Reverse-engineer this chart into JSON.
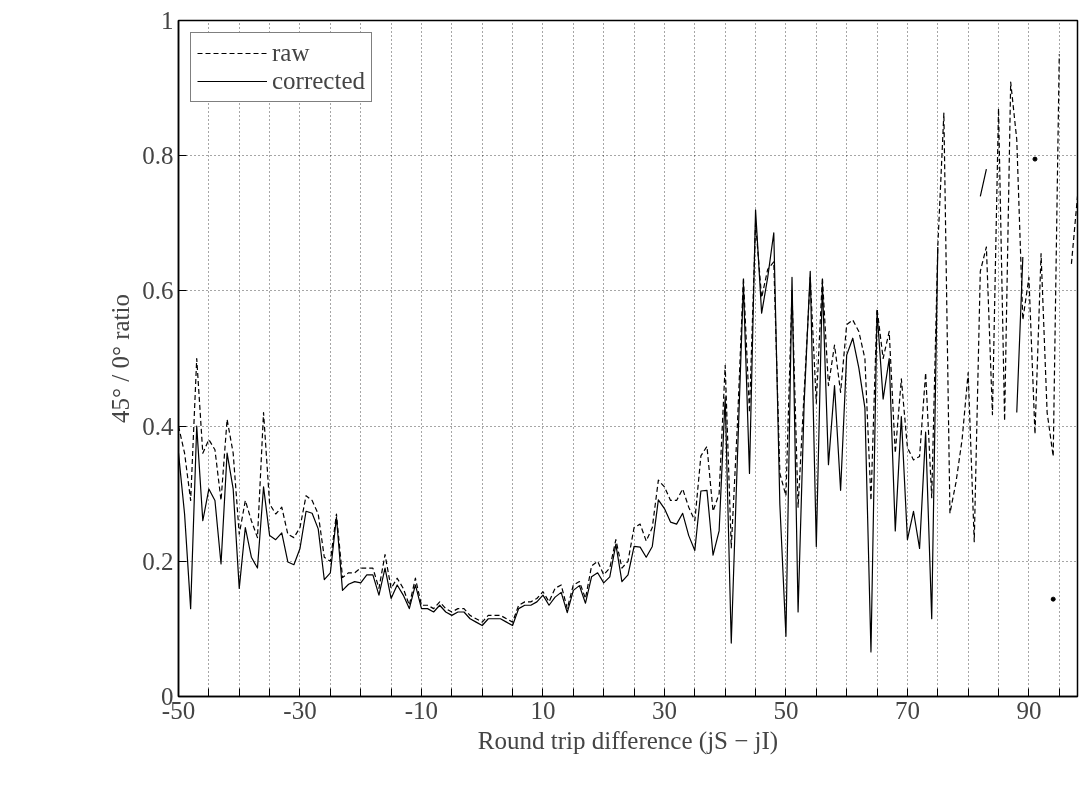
{
  "chart_data": {
    "type": "line",
    "xlabel": "Round trip difference (jS − jI)",
    "ylabel": "45° / 0° ratio",
    "x": [
      -50,
      -49,
      -48,
      -47,
      -46,
      -45,
      -44,
      -43,
      -42,
      -41,
      -40,
      -39,
      -38,
      -37,
      -36,
      -35,
      -34,
      -33,
      -32,
      -31,
      -30,
      -29,
      -28,
      -27,
      -26,
      -25,
      -24,
      -23,
      -22,
      -21,
      -20,
      -19,
      -18,
      -17,
      -16,
      -15,
      -14,
      -13,
      -12,
      -11,
      -10,
      -9,
      -8,
      -7,
      -6,
      -5,
      -4,
      -3,
      -2,
      -1,
      0,
      1,
      2,
      3,
      4,
      5,
      6,
      7,
      8,
      9,
      10,
      11,
      12,
      13,
      14,
      15,
      16,
      17,
      18,
      19,
      20,
      21,
      22,
      23,
      24,
      25,
      26,
      27,
      28,
      29,
      30,
      31,
      32,
      33,
      34,
      35,
      36,
      37,
      38,
      39,
      40,
      41,
      42,
      43,
      44,
      45,
      46,
      47,
      48,
      49,
      50,
      51,
      52,
      53,
      54,
      55,
      56,
      57,
      58,
      59,
      60,
      61,
      62,
      63,
      64,
      65,
      66,
      67,
      68,
      69,
      70,
      71,
      72,
      73,
      74,
      75,
      76,
      77,
      78,
      79,
      80,
      81,
      82,
      83,
      84,
      85,
      86,
      87,
      88,
      89,
      90,
      91,
      92,
      93,
      94,
      95,
      96,
      97,
      98
    ],
    "series": [
      {
        "name": "raw",
        "color": "#000000",
        "line_style": "dashed",
        "values": [
          0.4,
          0.36,
          0.29,
          0.5,
          0.36,
          0.38,
          0.365,
          0.29,
          0.41,
          0.36,
          0.24,
          0.29,
          0.26,
          0.235,
          0.42,
          0.285,
          0.27,
          0.28,
          0.24,
          0.235,
          0.25,
          0.297,
          0.29,
          0.27,
          0.206,
          0.2,
          0.27,
          0.176,
          0.183,
          0.183,
          0.19,
          0.19,
          0.19,
          0.16,
          0.21,
          0.16,
          0.175,
          0.16,
          0.135,
          0.175,
          0.135,
          0.135,
          0.13,
          0.14,
          0.13,
          0.125,
          0.13,
          0.13,
          0.12,
          0.115,
          0.11,
          0.12,
          0.12,
          0.12,
          0.115,
          0.11,
          0.135,
          0.14,
          0.14,
          0.145,
          0.155,
          0.14,
          0.16,
          0.165,
          0.13,
          0.165,
          0.17,
          0.145,
          0.193,
          0.2,
          0.18,
          0.19,
          0.232,
          0.19,
          0.2,
          0.25,
          0.255,
          0.23,
          0.25,
          0.32,
          0.31,
          0.29,
          0.29,
          0.307,
          0.28,
          0.26,
          0.356,
          0.37,
          0.274,
          0.3,
          0.49,
          0.22,
          0.4,
          0.62,
          0.42,
          0.7,
          0.59,
          0.632,
          0.643,
          0.33,
          0.297,
          0.6,
          0.28,
          0.45,
          0.62,
          0.434,
          0.62,
          0.46,
          0.52,
          0.45,
          0.55,
          0.557,
          0.54,
          0.5,
          0.29,
          0.574,
          0.5,
          0.54,
          0.36,
          0.47,
          0.368,
          0.35,
          0.355,
          0.479,
          0.294,
          0.665,
          0.863,
          0.271,
          0.317,
          0.38,
          0.479,
          0.229,
          0.629,
          0.665,
          0.417,
          0.87,
          0.408,
          0.909,
          0.824,
          0.557,
          0.62,
          0.388,
          0.655,
          0.42,
          0.355,
          0.95,
          null,
          0.64,
          0.74
        ]
      },
      {
        "name": "corrected",
        "color": "#000000",
        "line_style": "solid",
        "values": [
          0.36,
          0.27,
          0.13,
          0.4,
          0.26,
          0.307,
          0.29,
          0.196,
          0.36,
          0.307,
          0.16,
          0.25,
          0.206,
          0.19,
          0.31,
          0.238,
          0.232,
          0.242,
          0.199,
          0.195,
          0.219,
          0.274,
          0.271,
          0.248,
          0.173,
          0.183,
          0.265,
          0.157,
          0.166,
          0.17,
          0.168,
          0.18,
          0.18,
          0.15,
          0.19,
          0.145,
          0.165,
          0.15,
          0.13,
          0.165,
          0.13,
          0.13,
          0.125,
          0.135,
          0.125,
          0.12,
          0.125,
          0.125,
          0.115,
          0.11,
          0.105,
          0.115,
          0.115,
          0.115,
          0.11,
          0.105,
          0.13,
          0.135,
          0.135,
          0.14,
          0.15,
          0.135,
          0.147,
          0.154,
          0.124,
          0.157,
          0.164,
          0.138,
          0.177,
          0.183,
          0.168,
          0.177,
          0.225,
          0.17,
          0.18,
          0.222,
          0.221,
          0.206,
          0.222,
          0.291,
          0.278,
          0.258,
          0.255,
          0.271,
          0.238,
          0.216,
          0.304,
          0.305,
          0.209,
          0.245,
          0.443,
          0.079,
          0.35,
          0.61,
          0.33,
          0.72,
          0.567,
          0.62,
          0.686,
          0.284,
          0.089,
          0.62,
          0.125,
          0.434,
          0.629,
          0.222,
          0.611,
          0.343,
          0.46,
          0.305,
          0.505,
          0.53,
          0.486,
          0.427,
          0.066,
          0.57,
          0.44,
          0.5,
          0.245,
          0.414,
          0.232,
          0.274,
          0.219,
          0.391,
          0.115,
          0.665,
          null,
          null,
          null,
          null,
          null,
          null,
          0.74,
          0.78,
          null,
          null,
          null,
          null,
          0.42,
          0.65,
          null,
          0.795,
          null,
          null,
          0.144,
          null,
          null,
          null,
          null
        ]
      }
    ],
    "xlim": [
      -50,
      98
    ],
    "xticks": [
      -50,
      {
        "value": -45,
        "label": null
      },
      {
        "value": -40,
        "label": null
      },
      {
        "value": -35,
        "label": null
      },
      -30,
      {
        "value": -25,
        "label": null
      },
      {
        "value": -20,
        "label": null
      },
      {
        "value": -15,
        "label": null
      },
      -10,
      {
        "value": -5,
        "label": null
      },
      {
        "value": 0,
        "label": null
      },
      {
        "value": 5,
        "label": null
      },
      10,
      {
        "value": 15,
        "label": null
      },
      {
        "value": 20,
        "label": null
      },
      {
        "value": 25,
        "label": null
      },
      30,
      {
        "value": 35,
        "label": null
      },
      {
        "value": 40,
        "label": null
      },
      {
        "value": 45,
        "label": null
      },
      50,
      {
        "value": 55,
        "label": null
      },
      {
        "value": 60,
        "label": null
      },
      {
        "value": 65,
        "label": null
      },
      70,
      {
        "value": 75,
        "label": null
      },
      {
        "value": 80,
        "label": null
      },
      {
        "value": 85,
        "label": null
      },
      90,
      {
        "value": 95,
        "label": null
      }
    ],
    "ylim": [
      0,
      1
    ],
    "yticks": [
      0,
      0.2,
      0.4,
      0.6,
      0.8,
      1
    ],
    "grid": true,
    "legend": "top left"
  }
}
